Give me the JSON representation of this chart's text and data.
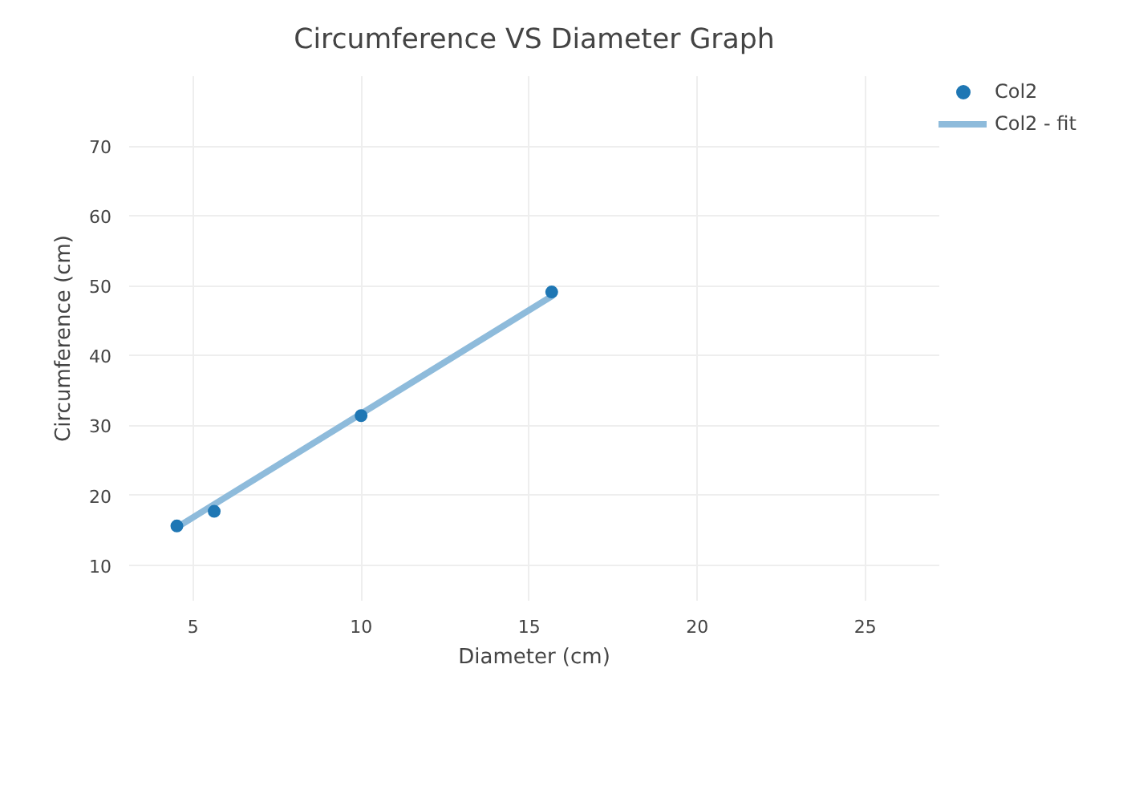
{
  "chart_data": {
    "type": "scatter",
    "title": "Circumference VS Diameter Graph",
    "xlabel": "Diameter (cm)",
    "ylabel": "Circumference (cm)",
    "xlim": [
      3.1,
      27.2
    ],
    "ylim": [
      4.9,
      80
    ],
    "xticks": [
      5,
      10,
      15,
      20,
      25
    ],
    "yticks": [
      10,
      20,
      30,
      40,
      50,
      60,
      70
    ],
    "grid": true,
    "legend": "top right",
    "series": [
      {
        "name": "Col2",
        "marker": "circle",
        "color": "#1f77b4",
        "x": [
          4.52,
          5.63,
          10.0,
          15.67
        ],
        "values": [
          15.6,
          17.7,
          31.4,
          49.1
        ]
      },
      {
        "name": "Col2 - fit",
        "type": "line",
        "color": "#8ebbdb",
        "x": [
          4.52,
          15.67
        ],
        "values": [
          15.4,
          48.5
        ]
      }
    ]
  }
}
